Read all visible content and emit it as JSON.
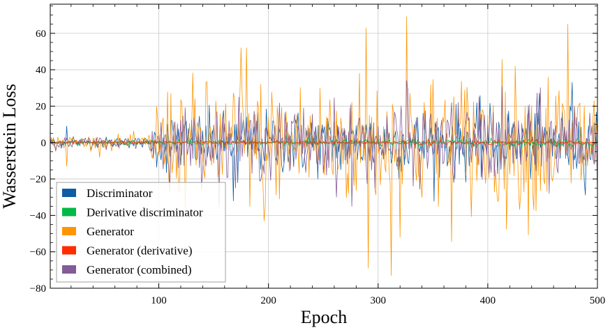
{
  "chart_data": {
    "type": "line",
    "title": "",
    "xlabel": "Epoch",
    "ylabel": "Wasserstein Loss",
    "xlim": [
      1,
      500
    ],
    "ylim": [
      -80,
      76
    ],
    "xticks": [
      100,
      200,
      300,
      400,
      500
    ],
    "yticks": [
      -80,
      -60,
      -40,
      -20,
      0,
      20,
      40,
      60
    ],
    "grid": true,
    "legend_position": "lower-left",
    "series": [
      {
        "name": "Discriminator",
        "color": "#0c5da5",
        "noise_profile": [
          [
            1,
            1.5
          ],
          [
            90,
            1.5
          ],
          [
            100,
            8
          ],
          [
            500,
            10
          ]
        ]
      },
      {
        "name": "Derivative discriminator",
        "color": "#00b945",
        "noise_profile": [
          [
            1,
            0.5
          ],
          [
            500,
            1.2
          ]
        ]
      },
      {
        "name": "Generator",
        "color": "#ff9500",
        "noise_profile": [
          [
            1,
            2
          ],
          [
            90,
            2
          ],
          [
            100,
            16
          ],
          [
            500,
            20
          ]
        ]
      },
      {
        "name": "Generator (derivative)",
        "color": "#ff2c00",
        "noise_profile": [
          [
            1,
            0.4
          ],
          [
            500,
            0.8
          ]
        ]
      },
      {
        "name": "Generator (combined)",
        "color": "#845b97",
        "noise_profile": [
          [
            1,
            1.5
          ],
          [
            90,
            1.5
          ],
          [
            100,
            9
          ],
          [
            500,
            12
          ]
        ]
      }
    ],
    "peaks": {
      "Generator": [
        [
          326,
          69
        ],
        [
          473,
          65
        ],
        [
          289,
          63
        ],
        [
          291,
          -69
        ],
        [
          312,
          -73
        ],
        [
          180,
          52
        ],
        [
          175,
          52
        ],
        [
          196,
          -43
        ]
      ],
      "Discriminator": [
        [
          477,
          33
        ],
        [
          168,
          -32
        ],
        [
          172,
          -22
        ]
      ],
      "Generator (combined)": [
        [
          326,
          34
        ],
        [
          276,
          -35
        ],
        [
          170,
          -25
        ]
      ]
    }
  }
}
